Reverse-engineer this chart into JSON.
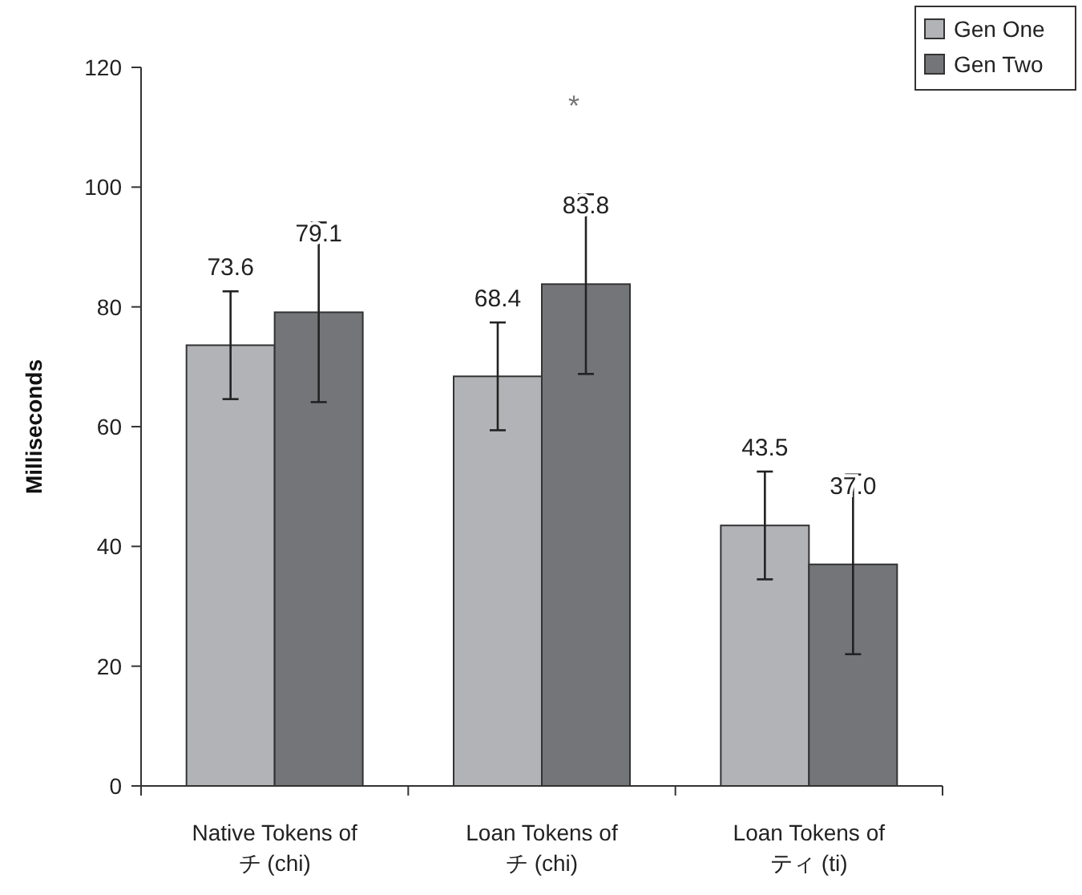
{
  "chart_data": {
    "type": "bar",
    "ylabel": "Milliseconds",
    "categories": [
      "Native Tokens of\nチ (chi)",
      "Loan Tokens of\nチ (chi)",
      "Loan Tokens of\nティ (ti)"
    ],
    "series": [
      {
        "name": "Gen One",
        "color": "#b2b3b6",
        "values": [
          73.6,
          68.4,
          43.5
        ],
        "errors": [
          9,
          9,
          9
        ],
        "value_labels": [
          "73.6",
          "68.4",
          "43.5"
        ]
      },
      {
        "name": "Gen Two",
        "color": "#747579",
        "values": [
          79.1,
          83.8,
          37.0
        ],
        "errors": [
          15,
          15,
          15
        ],
        "value_labels": [
          "79.1",
          "83.8",
          "37.0"
        ]
      }
    ],
    "ylim": [
      0,
      120
    ],
    "yticks": [
      0,
      20,
      40,
      60,
      80,
      100,
      120
    ],
    "grid": false,
    "legend": "top right",
    "annotations": [
      "*"
    ]
  }
}
